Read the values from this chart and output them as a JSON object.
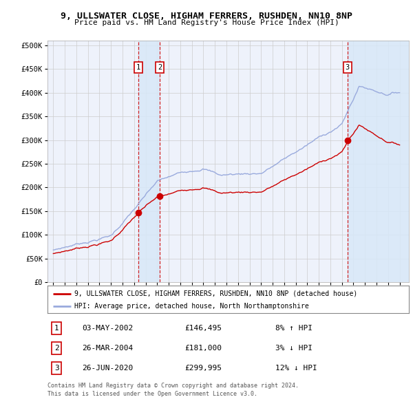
{
  "title_line1": "9, ULLSWATER CLOSE, HIGHAM FERRERS, RUSHDEN, NN10 8NP",
  "title_line2": "Price paid vs. HM Land Registry's House Price Index (HPI)",
  "ylim": [
    0,
    510000
  ],
  "yticks": [
    0,
    50000,
    100000,
    150000,
    200000,
    250000,
    300000,
    350000,
    400000,
    450000,
    500000
  ],
  "ytick_labels": [
    "£0",
    "£50K",
    "£100K",
    "£150K",
    "£200K",
    "£250K",
    "£300K",
    "£350K",
    "£400K",
    "£450K",
    "£500K"
  ],
  "bg_color": "#ffffff",
  "plot_bg_color": "#eef2fb",
  "grid_color": "#cccccc",
  "hpi_line_color": "#99aadd",
  "price_line_color": "#cc0000",
  "sale_marker_color": "#cc0000",
  "vline_color": "#cc0000",
  "vline_shade_color": "#d8e8f8",
  "transactions": [
    {
      "label": "1",
      "date_year": 2002.35,
      "price": 146495,
      "note": "8% ↑ HPI",
      "date_str": "03-MAY-2002",
      "price_str": "£146,495"
    },
    {
      "label": "2",
      "date_year": 2004.23,
      "price": 181000,
      "note": "3% ↓ HPI",
      "date_str": "26-MAR-2004",
      "price_str": "£181,000"
    },
    {
      "label": "3",
      "date_year": 2020.49,
      "price": 299995,
      "note": "12% ↓ HPI",
      "date_str": "26-JUN-2020",
      "price_str": "£299,995"
    }
  ],
  "legend_label_price": "9, ULLSWATER CLOSE, HIGHAM FERRERS, RUSHDEN, NN10 8NP (detached house)",
  "legend_label_hpi": "HPI: Average price, detached house, North Northamptonshire",
  "footer_line1": "Contains HM Land Registry data © Crown copyright and database right 2024.",
  "footer_line2": "This data is licensed under the Open Government Licence v3.0.",
  "xtick_start": 1995,
  "xtick_end": 2025,
  "xlim_left": 1994.5,
  "xlim_right": 2025.8
}
